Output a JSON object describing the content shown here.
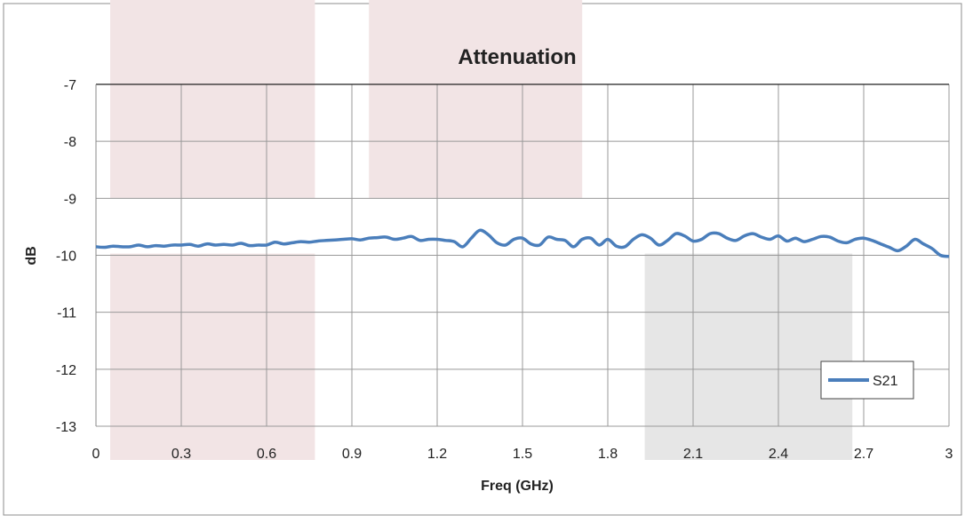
{
  "chart_data": {
    "type": "line",
    "title": "Attenuation",
    "xlabel": "Freq (GHz)",
    "ylabel": "dB",
    "xlim": [
      0,
      3
    ],
    "ylim": [
      -13,
      -7
    ],
    "x_ticks": [
      "0",
      "0.3",
      "0.6",
      "0.9",
      "1.2",
      "1.5",
      "1.8",
      "2.1",
      "2.4",
      "2.7",
      "3"
    ],
    "y_ticks": [
      "-7",
      "-8",
      "-9",
      "-10",
      "-11",
      "-12",
      "-13"
    ],
    "grid": true,
    "legend_position": "bottom-right",
    "series": [
      {
        "name": "S21",
        "color": "#4a7ebb",
        "x": [
          0,
          0.03,
          0.06,
          0.09,
          0.12,
          0.15,
          0.18,
          0.21,
          0.24,
          0.27,
          0.3,
          0.33,
          0.36,
          0.39,
          0.42,
          0.45,
          0.48,
          0.51,
          0.54,
          0.57,
          0.6,
          0.63,
          0.66,
          0.69,
          0.72,
          0.75,
          0.78,
          0.81,
          0.84,
          0.87,
          0.9,
          0.93,
          0.96,
          0.99,
          1.02,
          1.05,
          1.08,
          1.11,
          1.14,
          1.17,
          1.2,
          1.23,
          1.26,
          1.29,
          1.32,
          1.35,
          1.38,
          1.41,
          1.44,
          1.47,
          1.5,
          1.53,
          1.56,
          1.59,
          1.62,
          1.65,
          1.68,
          1.71,
          1.74,
          1.77,
          1.8,
          1.83,
          1.86,
          1.89,
          1.92,
          1.95,
          1.98,
          2.01,
          2.04,
          2.07,
          2.1,
          2.13,
          2.16,
          2.19,
          2.22,
          2.25,
          2.28,
          2.31,
          2.34,
          2.37,
          2.4,
          2.43,
          2.46,
          2.49,
          2.52,
          2.55,
          2.58,
          2.61,
          2.64,
          2.67,
          2.7,
          2.73,
          2.76,
          2.79,
          2.82,
          2.85,
          2.88,
          2.91,
          2.94,
          2.97,
          3.0
        ],
        "values": [
          -9.85,
          -9.86,
          -9.84,
          -9.85,
          -9.85,
          -9.82,
          -9.85,
          -9.83,
          -9.84,
          -9.82,
          -9.82,
          -9.81,
          -9.84,
          -9.8,
          -9.82,
          -9.81,
          -9.82,
          -9.79,
          -9.83,
          -9.82,
          -9.82,
          -9.77,
          -9.8,
          -9.78,
          -9.76,
          -9.77,
          -9.75,
          -9.74,
          -9.73,
          -9.72,
          -9.71,
          -9.73,
          -9.7,
          -9.69,
          -9.68,
          -9.72,
          -9.7,
          -9.67,
          -9.74,
          -9.72,
          -9.72,
          -9.74,
          -9.76,
          -9.85,
          -9.7,
          -9.56,
          -9.64,
          -9.78,
          -9.82,
          -9.72,
          -9.7,
          -9.8,
          -9.82,
          -9.68,
          -9.72,
          -9.74,
          -9.85,
          -9.72,
          -9.7,
          -9.82,
          -9.72,
          -9.84,
          -9.85,
          -9.72,
          -9.64,
          -9.7,
          -9.82,
          -9.74,
          -9.62,
          -9.66,
          -9.75,
          -9.72,
          -9.62,
          -9.62,
          -9.7,
          -9.74,
          -9.66,
          -9.62,
          -9.68,
          -9.72,
          -9.66,
          -9.75,
          -9.7,
          -9.76,
          -9.72,
          -9.67,
          -9.68,
          -9.75,
          -9.78,
          -9.72,
          -9.7,
          -9.74,
          -9.8,
          -9.86,
          -9.92,
          -9.84,
          -9.72,
          -9.8,
          -9.88,
          -10.0,
          -10.02
        ]
      }
    ],
    "shaded_bands": [
      {
        "x_from": 0.05,
        "x_to": 0.77,
        "y_from": -7,
        "y_to": -9,
        "color": "#f2e4e5"
      },
      {
        "x_from": 0.05,
        "x_to": 0.77,
        "y_from": -9.97,
        "y_to": -13,
        "color": "#f2e4e5"
      },
      {
        "x_from": 0.96,
        "x_to": 1.71,
        "y_from": -7,
        "y_to": -9,
        "color": "#f2e4e5"
      },
      {
        "x_from": 1.93,
        "x_to": 2.66,
        "y_from": -9.97,
        "y_to": -13,
        "color": "#e6e6e6"
      }
    ]
  }
}
